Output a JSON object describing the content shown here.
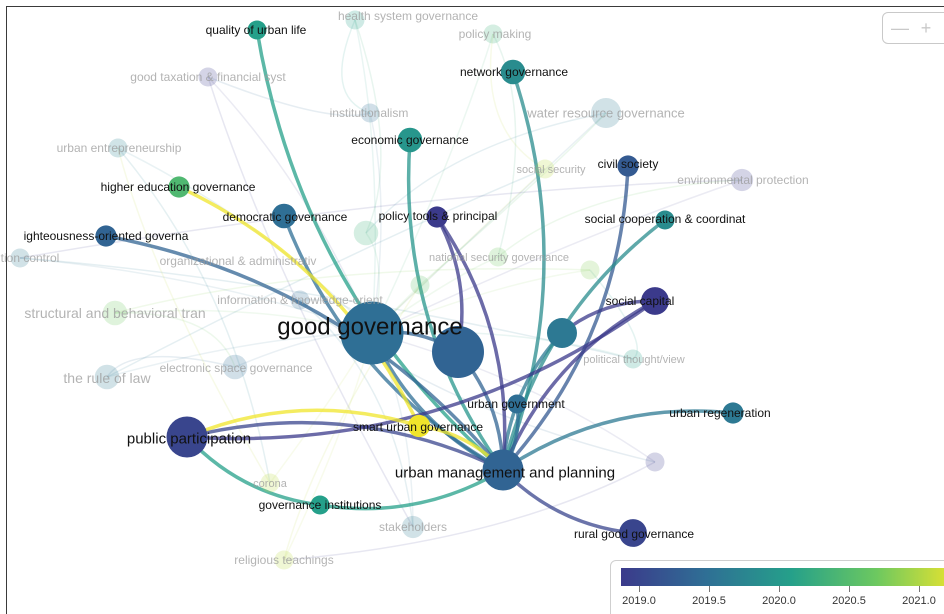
{
  "graph": {
    "nodes": [
      {
        "id": "good_governance",
        "label": "good governance",
        "value": 2019.5,
        "weight": 5,
        "faded": false,
        "emph": "hub"
      },
      {
        "id": "urban_management",
        "label": "urban management and planning",
        "value": 2019.4,
        "weight": 3,
        "faded": false,
        "emph": "main"
      },
      {
        "id": "hidden_big",
        "label": "",
        "value": 2019.4,
        "weight": 4,
        "faded": false
      },
      {
        "id": "mid_node",
        "label": "",
        "value": 2019.6,
        "weight": 2,
        "faded": false
      },
      {
        "id": "public_participation",
        "label": "public participation",
        "value": 2019.1,
        "weight": 3,
        "faded": false,
        "emph": "large"
      },
      {
        "id": "quality_urban_life",
        "label": "quality of urban life",
        "value": 2020.0,
        "weight": 1,
        "faded": false
      },
      {
        "id": "network_governance",
        "label": "network governance",
        "value": 2019.8,
        "weight": 1.5,
        "faded": false
      },
      {
        "id": "economic_governance",
        "label": "economic governance",
        "value": 2019.9,
        "weight": 1.5,
        "faded": false
      },
      {
        "id": "civil_society",
        "label": "civil society",
        "value": 2019.3,
        "weight": 1.2,
        "faded": false
      },
      {
        "id": "higher_education",
        "label": "higher education governance",
        "value": 2020.3,
        "weight": 1.2,
        "faded": false
      },
      {
        "id": "democratic_governance",
        "label": "democratic governance",
        "value": 2019.5,
        "weight": 1.5,
        "faded": false
      },
      {
        "id": "policy_tools",
        "label": "policy tools & principal",
        "value": 2019.0,
        "weight": 1.2,
        "faded": false
      },
      {
        "id": "social_cooperation",
        "label": "social cooperation & coordinat",
        "value": 2019.8,
        "weight": 1,
        "faded": false
      },
      {
        "id": "righteousness",
        "label": "ighteousness-oriented governa",
        "value": 2019.4,
        "weight": 1.2,
        "faded": false
      },
      {
        "id": "social_capital",
        "label": "social capital",
        "value": 2019.0,
        "weight": 1.8,
        "faded": false
      },
      {
        "id": "urban_government",
        "label": "urban government",
        "value": 2019.5,
        "weight": 1,
        "faded": false
      },
      {
        "id": "urban_regeneration",
        "label": "urban regeneration",
        "value": 2019.6,
        "weight": 1.2,
        "faded": false
      },
      {
        "id": "smart_urban",
        "label": "smart urban governance",
        "value": 2021.0,
        "weight": 1.3,
        "faded": false
      },
      {
        "id": "governance_institutions",
        "label": "governance institutions",
        "value": 2020.0,
        "weight": 1,
        "faded": false
      },
      {
        "id": "rural_good",
        "label": "rural good governance",
        "value": 2019.1,
        "weight": 1.8,
        "faded": false
      },
      {
        "id": "health_system",
        "label": "health system governance",
        "value": 2020.0,
        "weight": 1,
        "faded": true
      },
      {
        "id": "policy_making",
        "label": "policy making",
        "value": 2020.2,
        "weight": 1,
        "faded": true
      },
      {
        "id": "good_taxation",
        "label": "good taxation & financial syst",
        "value": 2019.0,
        "weight": 1,
        "faded": true
      },
      {
        "id": "institutionalism",
        "label": "institutionalism",
        "value": 2019.5,
        "weight": 1,
        "faded": true
      },
      {
        "id": "water_resource",
        "label": "water resource governance",
        "value": 2019.6,
        "weight": 2,
        "faded": true
      },
      {
        "id": "urban_entrepreneurship",
        "label": "urban entrepreneurship",
        "value": 2019.7,
        "weight": 1,
        "faded": true
      },
      {
        "id": "social_security",
        "label": "social security",
        "value": 2020.8,
        "weight": 1,
        "faded": true
      },
      {
        "id": "environmental_protection",
        "label": "environmental protection",
        "value": 2019.0,
        "weight": 1.3,
        "faded": true
      },
      {
        "id": "ion_control",
        "label": "tion control",
        "value": 2019.6,
        "weight": 1,
        "faded": true
      },
      {
        "id": "organizational",
        "label": "organizational & administrativ",
        "value": 2020.2,
        "weight": 1.5,
        "faded": true
      },
      {
        "id": "national_security",
        "label": "national security governance",
        "value": 2020.5,
        "weight": 1,
        "faded": true
      },
      {
        "id": "structural",
        "label": "structural and behavioral tran",
        "value": 2020.5,
        "weight": 1.5,
        "faded": true,
        "emph": "medium"
      },
      {
        "id": "information",
        "label": "information & knowledge-orient",
        "value": 2019.5,
        "weight": 1,
        "faded": true
      },
      {
        "id": "the_rule_of_law",
        "label": "the rule of law",
        "value": 2019.6,
        "weight": 1.5,
        "faded": true,
        "emph": "medium"
      },
      {
        "id": "electronic_space",
        "label": "electronic space governance",
        "value": 2019.5,
        "weight": 1.5,
        "faded": true
      },
      {
        "id": "political_thought",
        "label": "political thought/view",
        "value": 2020.0,
        "weight": 1,
        "faded": true
      },
      {
        "id": "corona",
        "label": "corona",
        "value": 2020.8,
        "weight": 1,
        "faded": true
      },
      {
        "id": "stakeholders",
        "label": "stakeholders",
        "value": 2019.6,
        "weight": 1.3,
        "faded": true
      },
      {
        "id": "religious_teachings",
        "label": "religious teachings",
        "value": 2020.8,
        "weight": 1,
        "faded": true
      },
      {
        "id": "faded_x1",
        "label": "",
        "value": 2020.4,
        "weight": 1,
        "faded": true
      },
      {
        "id": "faded_x2",
        "label": "",
        "value": 2020.6,
        "weight": 1,
        "faded": true
      },
      {
        "id": "faded_x3",
        "label": "",
        "value": 2019.0,
        "weight": 1,
        "faded": true
      }
    ],
    "edges": [
      [
        "urban_management",
        "good_governance"
      ],
      [
        "urban_management",
        "hidden_big"
      ],
      [
        "urban_management",
        "mid_node"
      ],
      [
        "urban_management",
        "public_participation"
      ],
      [
        "urban_management",
        "quality_urban_life"
      ],
      [
        "urban_management",
        "network_governance"
      ],
      [
        "urban_management",
        "economic_governance"
      ],
      [
        "urban_management",
        "civil_society"
      ],
      [
        "urban_management",
        "democratic_governance"
      ],
      [
        "urban_management",
        "policy_tools"
      ],
      [
        "urban_management",
        "social_cooperation"
      ],
      [
        "urban_management",
        "righteousness"
      ],
      [
        "urban_management",
        "social_capital"
      ],
      [
        "urban_management",
        "urban_government"
      ],
      [
        "urban_management",
        "urban_regeneration"
      ],
      [
        "urban_management",
        "smart_urban"
      ],
      [
        "urban_management",
        "governance_institutions"
      ],
      [
        "urban_management",
        "rural_good"
      ],
      [
        "higher_education",
        "smart_urban"
      ],
      [
        "public_participation",
        "social_capital"
      ],
      [
        "public_participation",
        "smart_urban"
      ],
      [
        "public_participation",
        "governance_institutions"
      ],
      [
        "mid_node",
        "social_capital"
      ],
      [
        "hidden_big",
        "policy_tools"
      ],
      [
        "good_governance",
        "hidden_big"
      ]
    ]
  },
  "legend": {
    "min": 2019.0,
    "max": 2021.0,
    "ticks": [
      "2019.0",
      "2019.5",
      "2020.0",
      "2020.5",
      "2021.0"
    ],
    "colors": [
      "#3b3a8b",
      "#2f6f95",
      "#25a08a",
      "#6cc860",
      "#f0e52b"
    ]
  },
  "zoom": {
    "minus_icon": "minus-icon",
    "plus_icon": "plus-icon"
  }
}
